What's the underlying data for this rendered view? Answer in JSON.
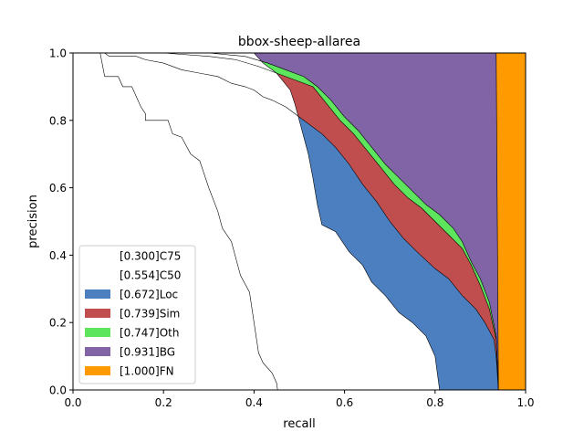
{
  "chart_data": {
    "type": "area",
    "title": "bbox-sheep-allarea",
    "xlabel": "recall",
    "ylabel": "precision",
    "xlim": [
      0,
      1
    ],
    "ylim": [
      0,
      1
    ],
    "x_ticks": [
      "0.0",
      "0.2",
      "0.4",
      "0.6",
      "0.8",
      "1.0"
    ],
    "y_ticks": [
      "0.0",
      "0.2",
      "0.4",
      "0.6",
      "0.8",
      "1.0"
    ],
    "grid": false,
    "legend_position": "lower-left",
    "series": [
      {
        "name": "[0.300]C75",
        "color": "#ffffff",
        "points": [
          [
            0,
            1
          ],
          [
            0.06,
            1
          ],
          [
            0.07,
            0.93
          ],
          [
            0.1,
            0.93
          ],
          [
            0.11,
            0.9
          ],
          [
            0.13,
            0.9
          ],
          [
            0.14,
            0.87
          ],
          [
            0.15,
            0.84
          ],
          [
            0.16,
            0.82
          ],
          [
            0.16,
            0.8
          ],
          [
            0.21,
            0.8
          ],
          [
            0.22,
            0.76
          ],
          [
            0.24,
            0.75
          ],
          [
            0.26,
            0.7
          ],
          [
            0.28,
            0.68
          ],
          [
            0.3,
            0.6
          ],
          [
            0.32,
            0.53
          ],
          [
            0.33,
            0.48
          ],
          [
            0.35,
            0.44
          ],
          [
            0.36,
            0.39
          ],
          [
            0.37,
            0.34
          ],
          [
            0.39,
            0.29
          ],
          [
            0.4,
            0.2
          ],
          [
            0.41,
            0.11
          ],
          [
            0.42,
            0.08
          ],
          [
            0.44,
            0.05
          ],
          [
            0.45,
            0.02
          ],
          [
            0.452,
            0
          ]
        ]
      },
      {
        "name": "[0.554]C50",
        "color": "#ffffff",
        "points": [
          [
            0,
            1
          ],
          [
            0.4,
            1
          ],
          [
            0.42,
            0.97
          ],
          [
            0.45,
            0.94
          ],
          [
            0.48,
            0.89
          ],
          [
            0.49,
            0.85
          ],
          [
            0.5,
            0.8
          ],
          [
            0.51,
            0.75
          ],
          [
            0.52,
            0.7
          ],
          [
            0.53,
            0.63
          ],
          [
            0.54,
            0.55
          ],
          [
            0.55,
            0.49
          ],
          [
            0.58,
            0.47
          ],
          [
            0.61,
            0.41
          ],
          [
            0.64,
            0.37
          ],
          [
            0.66,
            0.32
          ],
          [
            0.69,
            0.28
          ],
          [
            0.72,
            0.23
          ],
          [
            0.75,
            0.2
          ],
          [
            0.78,
            0.16
          ],
          [
            0.8,
            0.1
          ],
          [
            0.81,
            0
          ]
        ]
      },
      {
        "name": "[0.672]Loc",
        "color": "#4c7fbf",
        "points": [
          [
            0.07,
            1
          ],
          [
            0.08,
            0.99
          ],
          [
            0.14,
            0.99
          ],
          [
            0.16,
            0.98
          ],
          [
            0.2,
            0.97
          ],
          [
            0.24,
            0.95
          ],
          [
            0.28,
            0.94
          ],
          [
            0.32,
            0.93
          ],
          [
            0.35,
            0.91
          ],
          [
            0.38,
            0.9
          ],
          [
            0.4,
            0.89
          ],
          [
            0.42,
            0.87
          ],
          [
            0.44,
            0.86
          ],
          [
            0.47,
            0.84
          ],
          [
            0.49,
            0.82
          ],
          [
            0.52,
            0.79
          ],
          [
            0.55,
            0.76
          ],
          [
            0.58,
            0.72
          ],
          [
            0.61,
            0.67
          ],
          [
            0.64,
            0.61
          ],
          [
            0.67,
            0.56
          ],
          [
            0.7,
            0.5
          ],
          [
            0.73,
            0.45
          ],
          [
            0.76,
            0.41
          ],
          [
            0.8,
            0.36
          ],
          [
            0.83,
            0.33
          ],
          [
            0.86,
            0.28
          ],
          [
            0.89,
            0.24
          ],
          [
            0.91,
            0.2
          ],
          [
            0.93,
            0.15
          ],
          [
            0.935,
            0.1
          ],
          [
            0.94,
            0
          ]
        ]
      },
      {
        "name": "[0.739]Sim",
        "color": "#c04e4e",
        "points": [
          [
            0.07,
            1
          ],
          [
            0.2,
            1
          ],
          [
            0.3,
            0.99
          ],
          [
            0.36,
            0.98
          ],
          [
            0.41,
            0.96
          ],
          [
            0.45,
            0.94
          ],
          [
            0.49,
            0.92
          ],
          [
            0.53,
            0.9
          ],
          [
            0.56,
            0.85
          ],
          [
            0.59,
            0.8
          ],
          [
            0.62,
            0.76
          ],
          [
            0.65,
            0.71
          ],
          [
            0.68,
            0.66
          ],
          [
            0.71,
            0.61
          ],
          [
            0.74,
            0.57
          ],
          [
            0.77,
            0.54
          ],
          [
            0.8,
            0.5
          ],
          [
            0.83,
            0.46
          ],
          [
            0.86,
            0.42
          ],
          [
            0.88,
            0.37
          ],
          [
            0.9,
            0.31
          ],
          [
            0.92,
            0.24
          ],
          [
            0.935,
            0.15
          ],
          [
            0.94,
            0
          ]
        ]
      },
      {
        "name": "[0.747]Oth",
        "color": "#5de65d",
        "points": [
          [
            0.07,
            1
          ],
          [
            0.3,
            1
          ],
          [
            0.38,
            0.99
          ],
          [
            0.43,
            0.97
          ],
          [
            0.47,
            0.95
          ],
          [
            0.51,
            0.93
          ],
          [
            0.54,
            0.9
          ],
          [
            0.57,
            0.86
          ],
          [
            0.6,
            0.81
          ],
          [
            0.63,
            0.77
          ],
          [
            0.66,
            0.72
          ],
          [
            0.69,
            0.67
          ],
          [
            0.72,
            0.63
          ],
          [
            0.75,
            0.59
          ],
          [
            0.78,
            0.55
          ],
          [
            0.81,
            0.52
          ],
          [
            0.84,
            0.48
          ],
          [
            0.86,
            0.44
          ],
          [
            0.88,
            0.38
          ],
          [
            0.9,
            0.33
          ],
          [
            0.92,
            0.26
          ],
          [
            0.935,
            0.16
          ],
          [
            0.94,
            0
          ]
        ]
      },
      {
        "name": "[0.931]BG",
        "color": "#8064a6",
        "points": [
          [
            0.07,
            1
          ],
          [
            0.935,
            1
          ],
          [
            0.94,
            0
          ]
        ]
      },
      {
        "name": "[1.000]FN",
        "color": "#ff9a00",
        "points": [
          [
            0.07,
            1
          ],
          [
            0.935,
            1
          ],
          [
            1,
            1
          ],
          [
            1,
            0
          ],
          [
            0.94,
            0
          ]
        ]
      }
    ]
  }
}
